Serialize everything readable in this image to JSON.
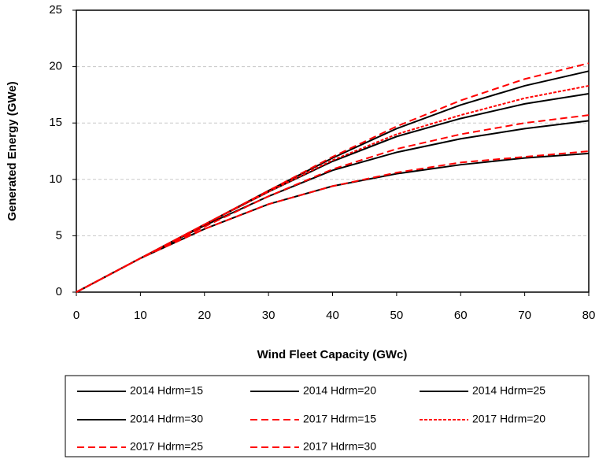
{
  "chart_data": {
    "type": "line",
    "xlabel": "Wind Fleet Capacity (GWc)",
    "ylabel": "Generated Energy (GWe)",
    "x": [
      0,
      10,
      20,
      30,
      40,
      50,
      60,
      70,
      80
    ],
    "xlim": [
      0,
      80
    ],
    "xticks": [
      0,
      10,
      20,
      30,
      40,
      50,
      60,
      70,
      80
    ],
    "ylim": [
      0,
      25
    ],
    "yticks": [
      0,
      5,
      10,
      15,
      20,
      25
    ],
    "grid": true,
    "legend": "bottom",
    "series": [
      {
        "name": "2014 Hdrm=15",
        "color": "#000000",
        "dash": "solid",
        "values": [
          0,
          3.0,
          6.0,
          9.0,
          11.9,
          14.5,
          16.6,
          18.3,
          19.6
        ]
      },
      {
        "name": "2014 Hdrm=20",
        "color": "#000000",
        "dash": "solid",
        "values": [
          0,
          3.0,
          6.0,
          8.9,
          11.6,
          13.8,
          15.4,
          16.7,
          17.6
        ]
      },
      {
        "name": "2014 Hdrm=25",
        "color": "#000000",
        "dash": "solid",
        "values": [
          0,
          3.0,
          5.9,
          8.5,
          10.8,
          12.4,
          13.6,
          14.5,
          15.2
        ]
      },
      {
        "name": "2014 Hdrm=30",
        "color": "#000000",
        "dash": "solid",
        "values": [
          0,
          3.0,
          5.6,
          7.8,
          9.4,
          10.5,
          11.3,
          11.9,
          12.3
        ]
      },
      {
        "name": "2017 Hdrm=15",
        "color": "#ff0000",
        "dash": "dashed",
        "values": [
          0,
          3.0,
          6.0,
          9.0,
          12.0,
          14.7,
          17.0,
          18.9,
          20.3
        ]
      },
      {
        "name": "2017 Hdrm=20",
        "color": "#ff0000",
        "dash": "dotted",
        "values": [
          0,
          3.0,
          6.0,
          8.9,
          11.7,
          14.0,
          15.7,
          17.2,
          18.3
        ]
      },
      {
        "name": "2017 Hdrm=25",
        "color": "#ff0000",
        "dash": "dashed",
        "values": [
          0,
          3.0,
          5.8,
          8.5,
          10.9,
          12.7,
          14.0,
          15.0,
          15.7
        ]
      },
      {
        "name": "2017 Hdrm=30",
        "color": "#ff0000",
        "dash": "dashed",
        "values": [
          0,
          3.0,
          5.6,
          7.8,
          9.4,
          10.6,
          11.5,
          12.0,
          12.5
        ]
      }
    ]
  }
}
